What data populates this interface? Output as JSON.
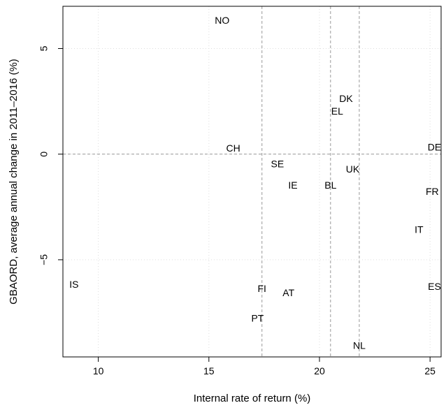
{
  "chart_data": {
    "type": "scatter",
    "title": "",
    "xlabel": "Internal rate of return (%)",
    "ylabel": "GBAORD, average annual change in 2011–2016 (%)",
    "xlim": [
      8.4,
      25.5
    ],
    "ylim": [
      -9.6,
      7.0
    ],
    "xticks": [
      10,
      15,
      20,
      25
    ],
    "yticks": [
      -5,
      0,
      5
    ],
    "grid": "dotted",
    "reference_lines": {
      "vertical": [
        17.4,
        20.5,
        21.8
      ],
      "horizontal": [
        0
      ]
    },
    "points": [
      {
        "label": "NO",
        "x": 15.6,
        "y": 6.3
      },
      {
        "label": "DK",
        "x": 21.2,
        "y": 2.6
      },
      {
        "label": "EL",
        "x": 20.8,
        "y": 2.0
      },
      {
        "label": "CH",
        "x": 16.1,
        "y": 0.25
      },
      {
        "label": "DE",
        "x": 25.2,
        "y": 0.3
      },
      {
        "label": "SE",
        "x": 18.1,
        "y": -0.5
      },
      {
        "label": "UK",
        "x": 21.5,
        "y": -0.75
      },
      {
        "label": "IE",
        "x": 18.8,
        "y": -1.5
      },
      {
        "label": "BL",
        "x": 20.5,
        "y": -1.5
      },
      {
        "label": "FR",
        "x": 25.1,
        "y": -1.8
      },
      {
        "label": "IT",
        "x": 24.5,
        "y": -3.6
      },
      {
        "label": "IS",
        "x": 8.9,
        "y": -6.2
      },
      {
        "label": "FI",
        "x": 17.4,
        "y": -6.4
      },
      {
        "label": "AT",
        "x": 18.6,
        "y": -6.6
      },
      {
        "label": "ES",
        "x": 25.2,
        "y": -6.3
      },
      {
        "label": "PT",
        "x": 17.2,
        "y": -7.8
      },
      {
        "label": "NL",
        "x": 21.8,
        "y": -9.1
      }
    ]
  }
}
